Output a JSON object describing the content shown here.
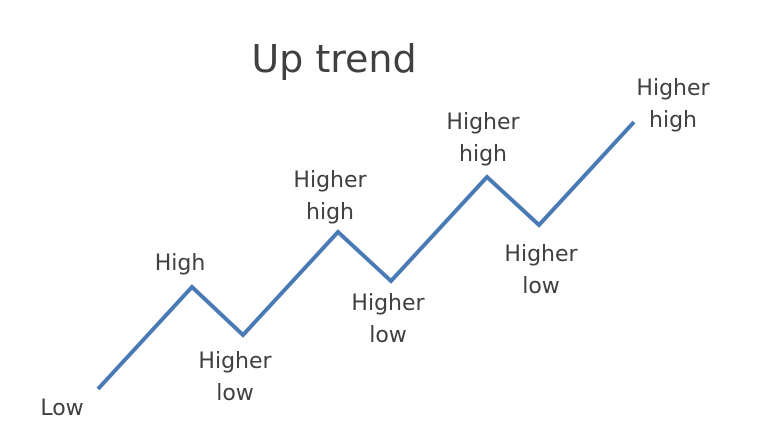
{
  "title": "Up trend",
  "colors": {
    "line": "#4a7ab5",
    "text": "#404040",
    "background": "#ffffff"
  },
  "points": [
    {
      "kind": "low",
      "lines": [
        "Low"
      ]
    },
    {
      "kind": "high",
      "lines": [
        "High"
      ]
    },
    {
      "kind": "low",
      "lines": [
        "Higher",
        "low"
      ]
    },
    {
      "kind": "high",
      "lines": [
        "Higher",
        "high"
      ]
    },
    {
      "kind": "low",
      "lines": [
        "Higher",
        "low"
      ]
    },
    {
      "kind": "high",
      "lines": [
        "Higher",
        "high"
      ]
    },
    {
      "kind": "low",
      "lines": [
        "Higher",
        "low"
      ]
    },
    {
      "kind": "high",
      "lines": [
        "Higher",
        "high"
      ]
    }
  ]
}
